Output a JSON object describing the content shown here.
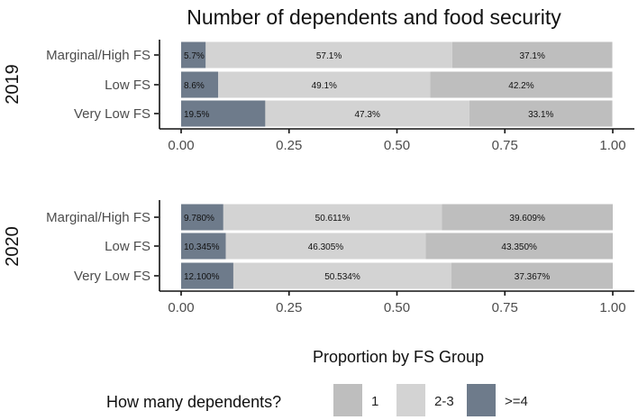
{
  "chart_data": {
    "type": "bar",
    "orientation": "horizontal",
    "stacked": true,
    "title": "Number of dependents and food security",
    "xlabel": "Proportion by FS Group",
    "xlim": [
      0,
      1
    ],
    "xticks": [
      "0.00",
      "0.25",
      "0.50",
      "0.75",
      "1.00"
    ],
    "categories": [
      "Marginal/High FS",
      "Low FS",
      "Very Low FS"
    ],
    "colors": {
      ">=4": "#6e7b8b",
      "2-3": "#d3d3d3",
      "1": "#bebebe"
    },
    "facets": [
      {
        "label": "2019",
        "series": [
          {
            "name": ">=4",
            "values": [
              0.057,
              0.086,
              0.195
            ],
            "labels": [
              "5.7%",
              "8.6%",
              "19.5%"
            ]
          },
          {
            "name": "2-3",
            "values": [
              0.571,
              0.491,
              0.473
            ],
            "labels": [
              "57.1%",
              "49.1%",
              "47.3%"
            ]
          },
          {
            "name": "1",
            "values": [
              0.371,
              0.422,
              0.331
            ],
            "labels": [
              "37.1%",
              "42.2%",
              "33.1%"
            ]
          }
        ]
      },
      {
        "label": "2020",
        "series": [
          {
            "name": ">=4",
            "values": [
              0.0978,
              0.10345,
              0.121
            ],
            "labels": [
              "9.780%",
              "10.345%",
              "12.100%"
            ]
          },
          {
            "name": "2-3",
            "values": [
              0.50611,
              0.46305,
              0.50534
            ],
            "labels": [
              "50.611%",
              "46.305%",
              "50.534%"
            ]
          },
          {
            "name": "1",
            "values": [
              0.39609,
              0.4335,
              0.37367
            ],
            "labels": [
              "39.609%",
              "43.350%",
              "37.367%"
            ]
          }
        ]
      }
    ],
    "legend": {
      "title": "How many dependents?",
      "position": "bottom",
      "items": [
        {
          "label": "1",
          "key": "1"
        },
        {
          "label": "2-3",
          "key": "2-3"
        },
        {
          "label": ">=4",
          "key": ">=4"
        }
      ]
    }
  }
}
